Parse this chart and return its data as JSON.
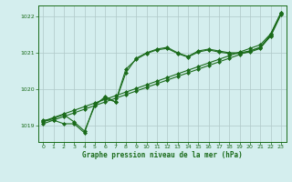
{
  "title": "Graphe pression niveau de la mer (hPa)",
  "bg_color": "#d4eeee",
  "grid_color": "#b0c8c8",
  "line_color": "#1a6b1a",
  "xlim": [
    -0.5,
    23.5
  ],
  "ylim": [
    1018.55,
    1022.3
  ],
  "yticks": [
    1019,
    1020,
    1021,
    1022
  ],
  "xticks": [
    0,
    1,
    2,
    3,
    4,
    5,
    6,
    7,
    8,
    9,
    10,
    11,
    12,
    13,
    14,
    15,
    16,
    17,
    18,
    19,
    20,
    21,
    22,
    23
  ],
  "y_zigzag": [
    1019.1,
    1019.2,
    1019.3,
    1019.1,
    1018.85,
    1019.55,
    1019.8,
    1019.65,
    1020.45,
    1020.85,
    1021.0,
    1021.1,
    1021.15,
    1021.0,
    1020.9,
    1021.05,
    1021.1,
    1021.05,
    1021.0,
    1021.0,
    1021.05,
    1021.15,
    1021.5,
    1022.1
  ],
  "y_zigzag2": [
    1019.15,
    1019.15,
    1019.05,
    1019.05,
    1018.8,
    1019.6,
    1019.75,
    1019.65,
    1020.55,
    1020.82,
    1020.98,
    1021.08,
    1021.12,
    1020.98,
    1020.88,
    1021.02,
    1021.08,
    1021.02,
    1020.98,
    1020.98,
    1021.02,
    1021.12,
    1021.48,
    1022.08
  ],
  "y_linear1": [
    1019.12,
    1019.22,
    1019.32,
    1019.42,
    1019.52,
    1019.62,
    1019.72,
    1019.82,
    1019.92,
    1020.02,
    1020.12,
    1020.22,
    1020.32,
    1020.42,
    1020.52,
    1020.62,
    1020.72,
    1020.82,
    1020.92,
    1021.02,
    1021.12,
    1021.22,
    1021.52,
    1022.1
  ],
  "y_linear2": [
    1019.05,
    1019.15,
    1019.25,
    1019.35,
    1019.45,
    1019.55,
    1019.65,
    1019.75,
    1019.85,
    1019.95,
    1020.05,
    1020.15,
    1020.25,
    1020.35,
    1020.45,
    1020.55,
    1020.65,
    1020.75,
    1020.85,
    1020.95,
    1021.05,
    1021.15,
    1021.45,
    1022.05
  ]
}
